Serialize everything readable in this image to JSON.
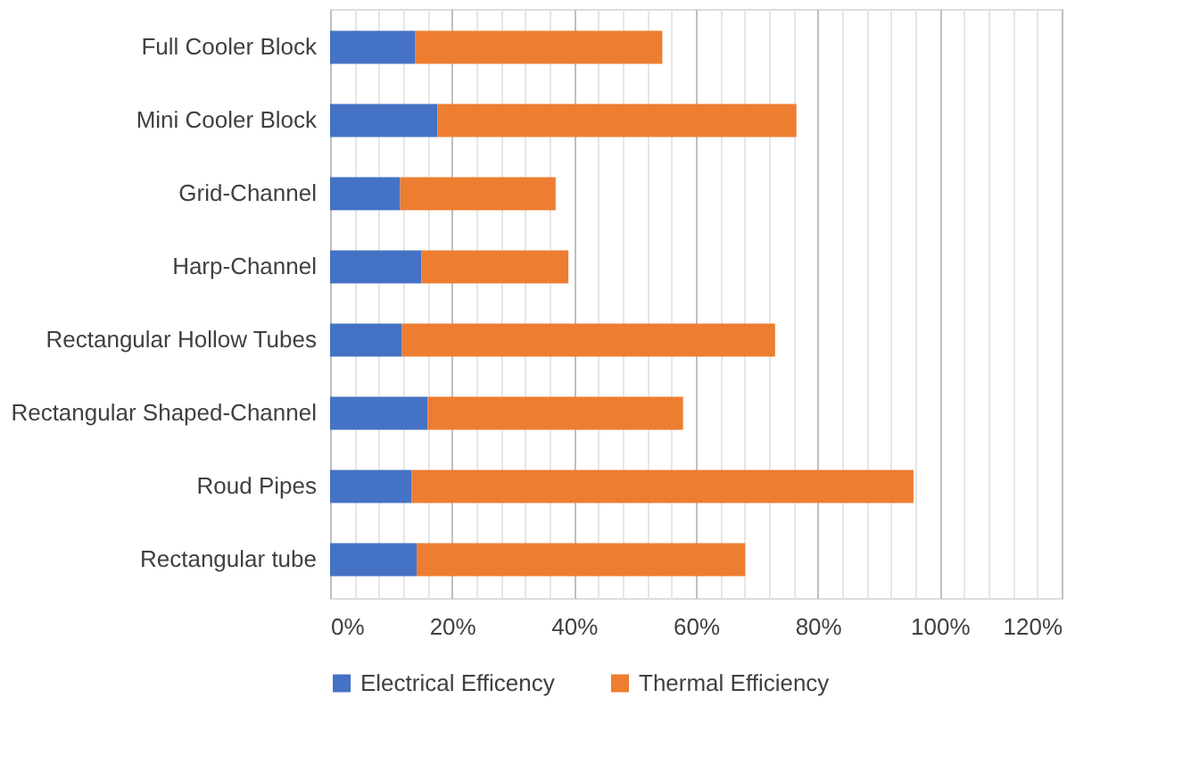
{
  "chart_data": {
    "type": "bar",
    "orientation": "horizontal",
    "stacked": true,
    "categories": [
      "Full Cooler Block",
      "Mini Cooler Block",
      "Grid-Channel",
      "Harp-Channel",
      "Rectangular Hollow Tubes",
      "Rectangular Shaped-Channel",
      "Roud Pipes",
      "Rectangular tube"
    ],
    "series": [
      {
        "name": "Electrical Efficency",
        "color": "#4472c4",
        "values": [
          14,
          17.6,
          11.5,
          15,
          11.8,
          16,
          13.4,
          14.2
        ]
      },
      {
        "name": "Thermal Efficiency",
        "color": "#ed7d31",
        "values": [
          40.5,
          58.9,
          25.5,
          24.1,
          61.2,
          41.9,
          82.3,
          53.9
        ]
      }
    ],
    "xlim": [
      0,
      120
    ],
    "xticks": [
      {
        "value": 0,
        "label": "0%"
      },
      {
        "value": 4,
        "label": null
      },
      {
        "value": 8,
        "label": null
      },
      {
        "value": 12,
        "label": null
      },
      {
        "value": 16,
        "label": null
      },
      {
        "value": 20,
        "label": "20%"
      },
      {
        "value": 24,
        "label": null
      },
      {
        "value": 28,
        "label": null
      },
      {
        "value": 32,
        "label": null
      },
      {
        "value": 36,
        "label": null
      },
      {
        "value": 40,
        "label": "40%"
      },
      {
        "value": 44,
        "label": null
      },
      {
        "value": 48,
        "label": null
      },
      {
        "value": 52,
        "label": null
      },
      {
        "value": 56,
        "label": null
      },
      {
        "value": 60,
        "label": "60%"
      },
      {
        "value": 64,
        "label": null
      },
      {
        "value": 68,
        "label": null
      },
      {
        "value": 72,
        "label": null
      },
      {
        "value": 76,
        "label": null
      },
      {
        "value": 80,
        "label": "80%"
      },
      {
        "value": 84,
        "label": null
      },
      {
        "value": 88,
        "label": null
      },
      {
        "value": 92,
        "label": null
      },
      {
        "value": 96,
        "label": null
      },
      {
        "value": 100,
        "label": "100%"
      },
      {
        "value": 104,
        "label": null
      },
      {
        "value": 108,
        "label": null
      },
      {
        "value": 112,
        "label": null
      },
      {
        "value": 116,
        "label": null
      },
      {
        "value": 120,
        "label": "120%"
      }
    ],
    "grid": true,
    "legend": "bottom"
  }
}
